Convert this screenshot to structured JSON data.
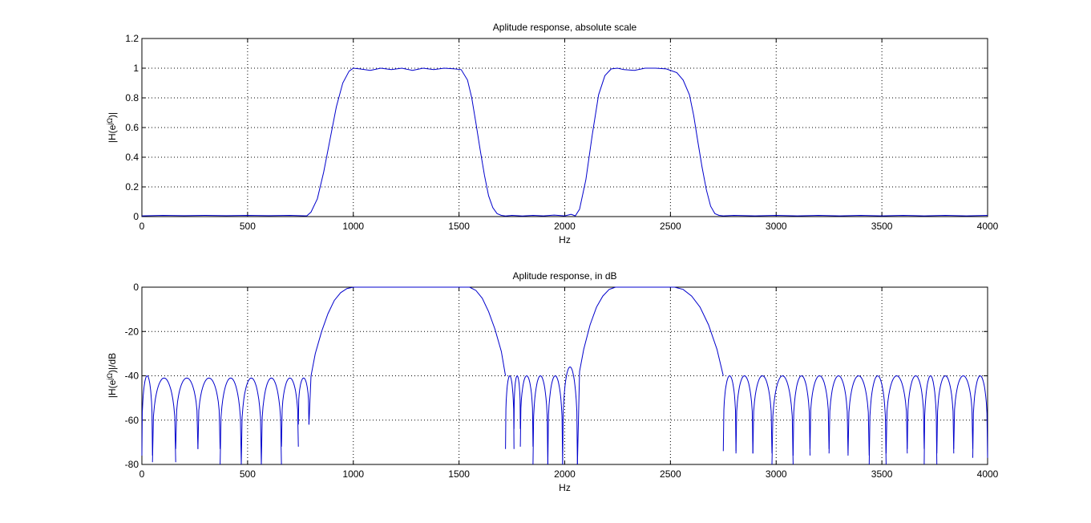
{
  "colors": {
    "series": "#0000cc",
    "axes": "#000000",
    "background": "#ffffff"
  },
  "chart_data": [
    {
      "type": "line",
      "title": "Aplitude response, absolute scale",
      "xlabel": "Hz",
      "ylabel": "|H(e",
      "ylabel_sup": "jΩ",
      "ylabel_suffix": ")|",
      "xlim": [
        0,
        4000
      ],
      "ylim": [
        0,
        1.2
      ],
      "xticks": [
        0,
        500,
        1000,
        1500,
        2000,
        2500,
        3000,
        3500,
        4000
      ],
      "xtick_labels": [
        "0",
        "500",
        "1000",
        "1500",
        "2000",
        "2500",
        "3000",
        "3500",
        "4000"
      ],
      "yticks": [
        0,
        0.2,
        0.4,
        0.6,
        0.8,
        1.0,
        1.2
      ],
      "ytick_labels": [
        "0",
        "0.2",
        "0.4",
        "0.6",
        "0.8",
        "1",
        "1.2"
      ],
      "grid": true,
      "series": [
        {
          "x": [
            0,
            100,
            200,
            300,
            400,
            500,
            600,
            700,
            780,
            800,
            830,
            860,
            890,
            920,
            950,
            980,
            1000,
            1030,
            1080,
            1130,
            1180,
            1230,
            1280,
            1330,
            1380,
            1430,
            1480,
            1510,
            1540,
            1560,
            1580,
            1600,
            1620,
            1640,
            1660,
            1680,
            1700,
            1720,
            1750,
            1800,
            1850,
            1900,
            1950,
            2000,
            2030,
            2050,
            2070,
            2100,
            2130,
            2160,
            2190,
            2220,
            2250,
            2280,
            2330,
            2380,
            2430,
            2480,
            2530,
            2560,
            2590,
            2610,
            2630,
            2650,
            2670,
            2690,
            2710,
            2730,
            2750,
            2800,
            2900,
            3000,
            3100,
            3200,
            3300,
            3400,
            3500,
            3600,
            3700,
            3800,
            3900,
            4000
          ],
          "y": [
            0.005,
            0.008,
            0.006,
            0.008,
            0.006,
            0.008,
            0.006,
            0.008,
            0.005,
            0.03,
            0.12,
            0.3,
            0.52,
            0.74,
            0.9,
            0.98,
            1.0,
            0.995,
            0.985,
            1.0,
            0.99,
            1.0,
            0.985,
            1.0,
            0.99,
            1.0,
            0.995,
            0.99,
            0.92,
            0.8,
            0.63,
            0.45,
            0.28,
            0.14,
            0.06,
            0.02,
            0.008,
            0.004,
            0.008,
            0.004,
            0.008,
            0.005,
            0.01,
            0.005,
            0.015,
            0.005,
            0.05,
            0.25,
            0.55,
            0.82,
            0.95,
            0.995,
            1.0,
            0.99,
            0.985,
            1.0,
            1.0,
            0.995,
            0.97,
            0.92,
            0.82,
            0.68,
            0.5,
            0.33,
            0.18,
            0.07,
            0.02,
            0.008,
            0.005,
            0.008,
            0.005,
            0.008,
            0.005,
            0.008,
            0.005,
            0.008,
            0.005,
            0.008,
            0.005,
            0.008,
            0.005,
            0.008
          ]
        }
      ]
    },
    {
      "type": "line",
      "title": "Aplitude response, in dB",
      "xlabel": "Hz",
      "ylabel": "|H(e",
      "ylabel_sup": "jΩ",
      "ylabel_suffix": ")|/dB",
      "xlim": [
        0,
        4000
      ],
      "ylim": [
        -80,
        0
      ],
      "xticks": [
        0,
        500,
        1000,
        1500,
        2000,
        2500,
        3000,
        3500,
        4000
      ],
      "xtick_labels": [
        "0",
        "500",
        "1000",
        "1500",
        "2000",
        "2500",
        "3000",
        "3500",
        "4000"
      ],
      "yticks": [
        -80,
        -60,
        -40,
        -20,
        0
      ],
      "ytick_labels": [
        "-80",
        "-60",
        "-40",
        "-20",
        "0"
      ],
      "grid": true,
      "series": [
        {
          "lobes": [
            [
              0,
              50,
              -40,
              -76
            ],
            [
              50,
              160,
              -41,
              -79
            ],
            [
              160,
              265,
              -41,
              -73
            ],
            [
              265,
              370,
              -41,
              -73
            ],
            [
              370,
              470,
              -41,
              -80
            ],
            [
              470,
              565,
              -41,
              -80
            ],
            [
              565,
              660,
              -41,
              -80
            ],
            [
              660,
              740,
              -41,
              -72
            ],
            [
              740,
              790,
              -41,
              -62
            ],
            [
              1720,
              1760,
              -40,
              -73
            ],
            [
              1760,
              1790,
              -40,
              -64
            ],
            [
              1790,
              1850,
              -40,
              -72
            ],
            [
              1850,
              1920,
              -40,
              -80
            ],
            [
              1920,
              1990,
              -40,
              -80
            ],
            [
              1990,
              2060,
              -36,
              -80
            ],
            [
              2750,
              2810,
              -40,
              -74
            ],
            [
              2810,
              2890,
              -40,
              -75
            ],
            [
              2890,
              2980,
              -40,
              -75
            ],
            [
              2980,
              3080,
              -40,
              -80
            ],
            [
              3080,
              3160,
              -40,
              -76
            ],
            [
              3160,
              3250,
              -40,
              -73
            ],
            [
              3250,
              3340,
              -40,
              -75
            ],
            [
              3340,
              3440,
              -40,
              -76
            ],
            [
              3440,
              3520,
              -40,
              -80
            ],
            [
              3520,
              3620,
              -40,
              -75
            ],
            [
              3620,
              3700,
              -40,
              -73
            ],
            [
              3700,
              3760,
              -40,
              -80
            ],
            [
              3760,
              3840,
              -40,
              -75
            ],
            [
              3840,
              3930,
              -40,
              -73
            ],
            [
              3930,
              4000,
              -40,
              -77
            ]
          ],
          "curves": [
            {
              "x": [
                790,
                800,
                820,
                850,
                880,
                910,
                940,
                970,
                1000
              ],
              "y": [
                -62,
                -40,
                -30,
                -20,
                -12,
                -6,
                -2.5,
                -0.6,
                0
              ]
            },
            {
              "x": [
                1000,
                1550
              ],
              "y": [
                0,
                0
              ]
            },
            {
              "x": [
                1550,
                1580,
                1610,
                1640,
                1670,
                1700,
                1720
              ],
              "y": [
                0,
                -1.5,
                -5,
                -11,
                -19,
                -29,
                -40
              ]
            },
            {
              "x": [
                2060,
                2070,
                2090,
                2120,
                2150,
                2180,
                2210,
                2240
              ],
              "y": [
                -80,
                -38,
                -28,
                -17,
                -9,
                -4,
                -1,
                0
              ]
            },
            {
              "x": [
                2240,
                2520
              ],
              "y": [
                0,
                0
              ]
            },
            {
              "x": [
                2520,
                2560,
                2600,
                2640,
                2680,
                2720,
                2750
              ],
              "y": [
                0,
                -1,
                -4,
                -9,
                -17,
                -28,
                -40
              ]
            }
          ]
        }
      ]
    }
  ]
}
